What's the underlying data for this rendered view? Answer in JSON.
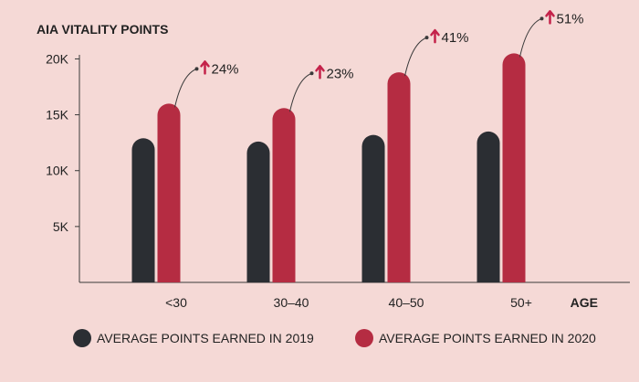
{
  "chart_data": {
    "type": "bar",
    "title": "AIA VITALITY POINTS",
    "xlabel": "AGE",
    "ylabel": "",
    "ylim": [
      0,
      22000
    ],
    "yticks": [
      {
        "value": 5000,
        "label": "5K"
      },
      {
        "value": 10000,
        "label": "10K"
      },
      {
        "value": 15000,
        "label": "15K"
      },
      {
        "value": 20000,
        "label": "20K"
      }
    ],
    "categories": [
      "<30",
      "30–40",
      "40–50",
      "50+"
    ],
    "series": [
      {
        "name": "AVERAGE POINTS EARNED IN 2019",
        "color": "#2b2e33",
        "values": [
          12900,
          12600,
          13200,
          13500
        ]
      },
      {
        "name": "AVERAGE POINTS EARNED IN 2020",
        "color": "#b52c42",
        "values": [
          16000,
          15600,
          18800,
          20500
        ]
      }
    ],
    "annotations": [
      {
        "category": "<30",
        "text": "24%"
      },
      {
        "category": "30–40",
        "text": "23%"
      },
      {
        "category": "40–50",
        "text": "41%"
      },
      {
        "category": "50+",
        "text": "51%"
      }
    ],
    "annotation_color": "#c4224a",
    "legend_position": "bottom",
    "grid": false
  }
}
